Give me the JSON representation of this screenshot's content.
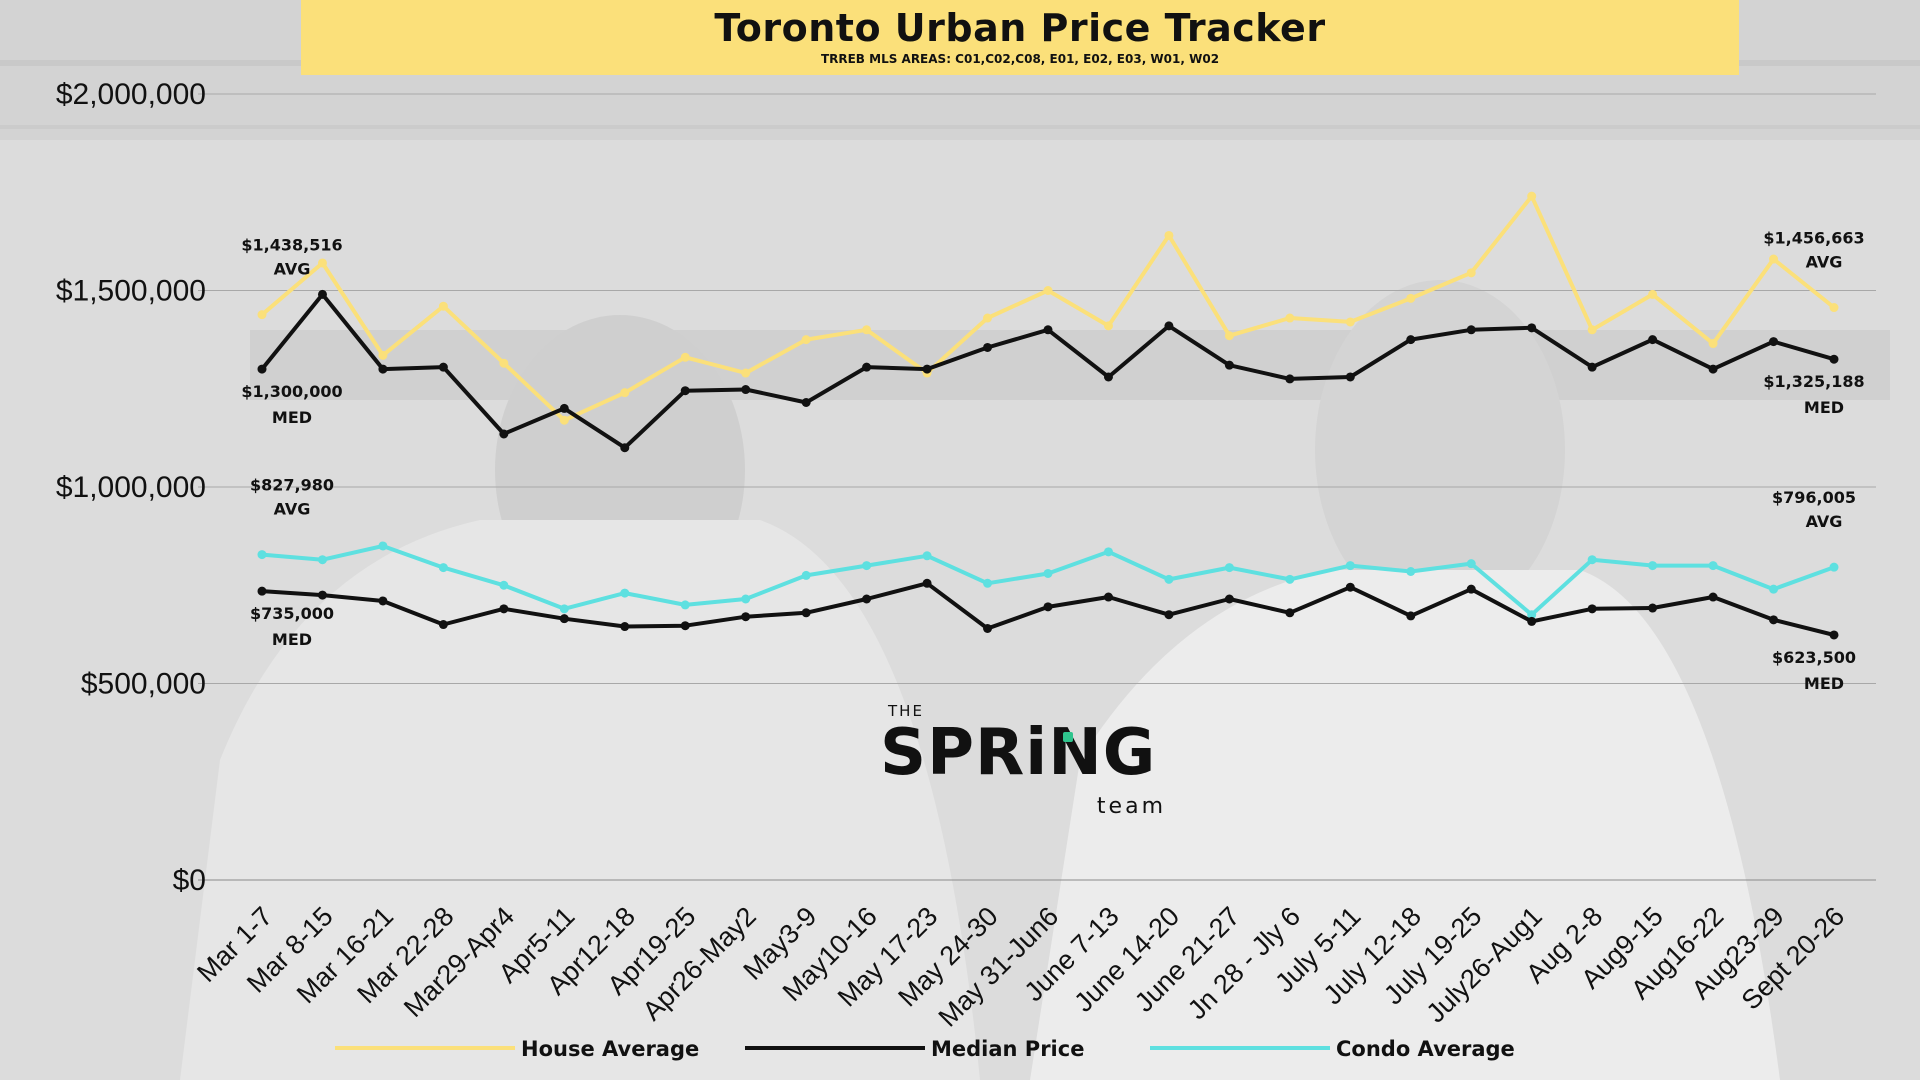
{
  "header": {
    "title": "Toronto Urban Price Tracker",
    "subtitle": "TRREB MLS AREAS: C01,C02,C08, E01, E02, E03, W01, W02"
  },
  "logo": {
    "the": "THE",
    "spring": "SPRiNG",
    "team": "team"
  },
  "colors": {
    "house": "#fbe07a",
    "condo": "#5ee0e0",
    "median": "#111111",
    "banner": "#fbe07a",
    "grid": "#a8a8a8",
    "background": "#dcdcdc"
  },
  "chart_data": {
    "type": "line",
    "title": "Toronto Urban Price Tracker",
    "subtitle": "TRREB MLS AREAS: C01,C02,C08, E01, E02, E03, W01, W02",
    "ylim": [
      0,
      2000000
    ],
    "yticks": [
      0,
      500000,
      1000000,
      1500000,
      2000000
    ],
    "ytick_labels": [
      "$0",
      "$500,000",
      "$1,000,000",
      "$1,500,000",
      "$2,000,000"
    ],
    "grid": true,
    "legend_position": "bottom",
    "categories": [
      "Mar 1-7",
      "Mar 8-15",
      "Mar 16-21",
      "Mar 22-28",
      "Mar29-Apr4",
      "Apr5-11",
      "Apr12-18",
      "Apr19-25",
      "Apr26-May2",
      "May3-9",
      "May10-16",
      "May 17-23",
      "May 24-30",
      "May 31-Jun6",
      "June 7-13",
      "June 14-20",
      "June 21-27",
      "Jn 28 - Jly 6",
      "July 5-11",
      "July 12-18",
      "July 19-25",
      "July26-Aug1",
      "Aug 2-8",
      "Aug9-15",
      "Aug16-22",
      "Aug23-29",
      "Sept 20-26"
    ],
    "series": [
      {
        "name": "House Average",
        "color": "#fbe07a",
        "values": [
          1438516,
          1570000,
          1335000,
          1460000,
          1315000,
          1170000,
          1240000,
          1330000,
          1290000,
          1375000,
          1400000,
          1290000,
          1430000,
          1500000,
          1410000,
          1640000,
          1385000,
          1430000,
          1420000,
          1480000,
          1545000,
          1740000,
          1400000,
          1490000,
          1365000,
          1580000,
          1456663
        ]
      },
      {
        "name": "Median Price",
        "color": "#111111",
        "values": [
          1300000,
          1490000,
          1300000,
          1305000,
          1135000,
          1200000,
          1100000,
          1245000,
          1248000,
          1215000,
          1305000,
          1300000,
          1355000,
          1400000,
          1280000,
          1410000,
          1310000,
          1275000,
          1280000,
          1375000,
          1400000,
          1405000,
          1305000,
          1375000,
          1300000,
          1370000,
          1325188
        ]
      },
      {
        "name": "Condo Average",
        "color": "#5ee0e0",
        "values": [
          827980,
          815000,
          850000,
          795000,
          750000,
          690000,
          730000,
          700000,
          715000,
          775000,
          800000,
          825000,
          755000,
          780000,
          835000,
          765000,
          795000,
          765000,
          800000,
          785000,
          805000,
          675000,
          815000,
          800000,
          800000,
          740000,
          796005
        ]
      },
      {
        "name": "Median Price",
        "color": "#111111",
        "legend": false,
        "values": [
          735000,
          725000,
          710000,
          650000,
          690000,
          665000,
          645000,
          647000,
          670000,
          680000,
          715000,
          755000,
          640000,
          695000,
          720000,
          675000,
          715000,
          680000,
          745000,
          672000,
          740000,
          658000,
          690000,
          692000,
          720000,
          662000,
          623500
        ]
      }
    ],
    "annotations": [
      {
        "text": "$1,438,516",
        "sub": "AVG"
      },
      {
        "text": "$1,300,000",
        "sub": "MED"
      },
      {
        "text": "$827,980",
        "sub": "AVG"
      },
      {
        "text": "$735,000",
        "sub": "MED"
      },
      {
        "text": "$1,456,663",
        "sub": "AVG"
      },
      {
        "text": "$1,325,188",
        "sub": "MED"
      },
      {
        "text": "$796,005",
        "sub": "AVG"
      },
      {
        "text": "$623,500",
        "sub": "MED"
      }
    ]
  }
}
